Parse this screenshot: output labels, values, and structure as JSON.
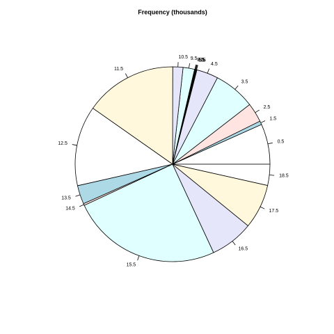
{
  "chart_data": {
    "type": "pie",
    "title": "Frequency (thousands)",
    "categories": [
      "0.5",
      "1.5",
      "2.5",
      "3.5",
      "4.5",
      "5.5",
      "6.5",
      "7.5",
      "8.5",
      "9.5",
      "10.5",
      "11.5",
      "12.5",
      "13.5",
      "14.5",
      "15.5",
      "16.5",
      "17.5",
      "18.5"
    ],
    "values": [
      6.7,
      0.6,
      3.2,
      6.9,
      3.6,
      0.1,
      0.1,
      0.1,
      0.1,
      1.9,
      1.7,
      15.3,
      13.3,
      3.1,
      0.3,
      25,
      7.2,
      7.4,
      3.5
    ],
    "colors": [
      "#ffffff",
      "#add8e6",
      "#ffe4e1",
      "#e0ffff",
      "#e6e6fa",
      "#fff8dc",
      "#ffffff",
      "#add8e6",
      "#ffe4e1",
      "#e0ffff",
      "#e6e6fa",
      "#fff8dc",
      "#ffffff",
      "#add8e6",
      "#ffe4e1",
      "#e0ffff",
      "#e6e6fa",
      "#fff8dc",
      "#ffffff"
    ],
    "start_angle": 0,
    "clockwise": false
  }
}
